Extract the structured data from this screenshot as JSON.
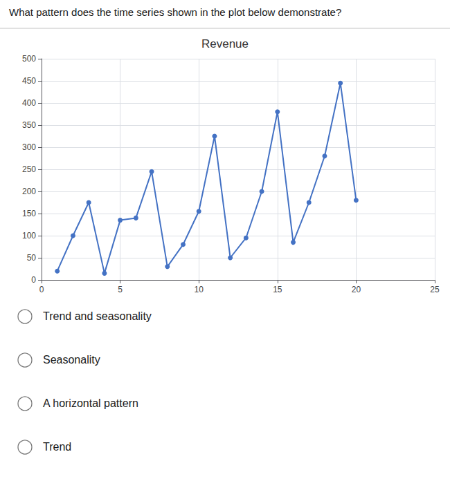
{
  "chart_data": {
    "type": "line",
    "title": "Revenue",
    "annotations": [
      "What pattern does the time series shown in the plot below demonstrate?",
      "Trend and seasonality",
      "Seasonality",
      "A horizontal pattern",
      "Trend"
    ],
    "x": [
      1,
      2,
      3,
      4,
      5,
      6,
      7,
      8,
      9,
      10,
      11,
      12,
      13,
      14,
      15,
      16,
      17,
      18,
      19,
      20
    ],
    "values": [
      20,
      100,
      175,
      15,
      135,
      140,
      245,
      30,
      80,
      155,
      325,
      50,
      95,
      200,
      380,
      85,
      175,
      280,
      445,
      180
    ],
    "color": "#4472C4",
    "marker": "circle",
    "xlim": [
      0,
      25
    ],
    "xticks": [
      0,
      5,
      10,
      15,
      20,
      25
    ],
    "ylim": [
      0,
      500
    ],
    "yticks": [
      0,
      50,
      100,
      150,
      200,
      250,
      300,
      350,
      400,
      450,
      500
    ],
    "grid": true
  }
}
